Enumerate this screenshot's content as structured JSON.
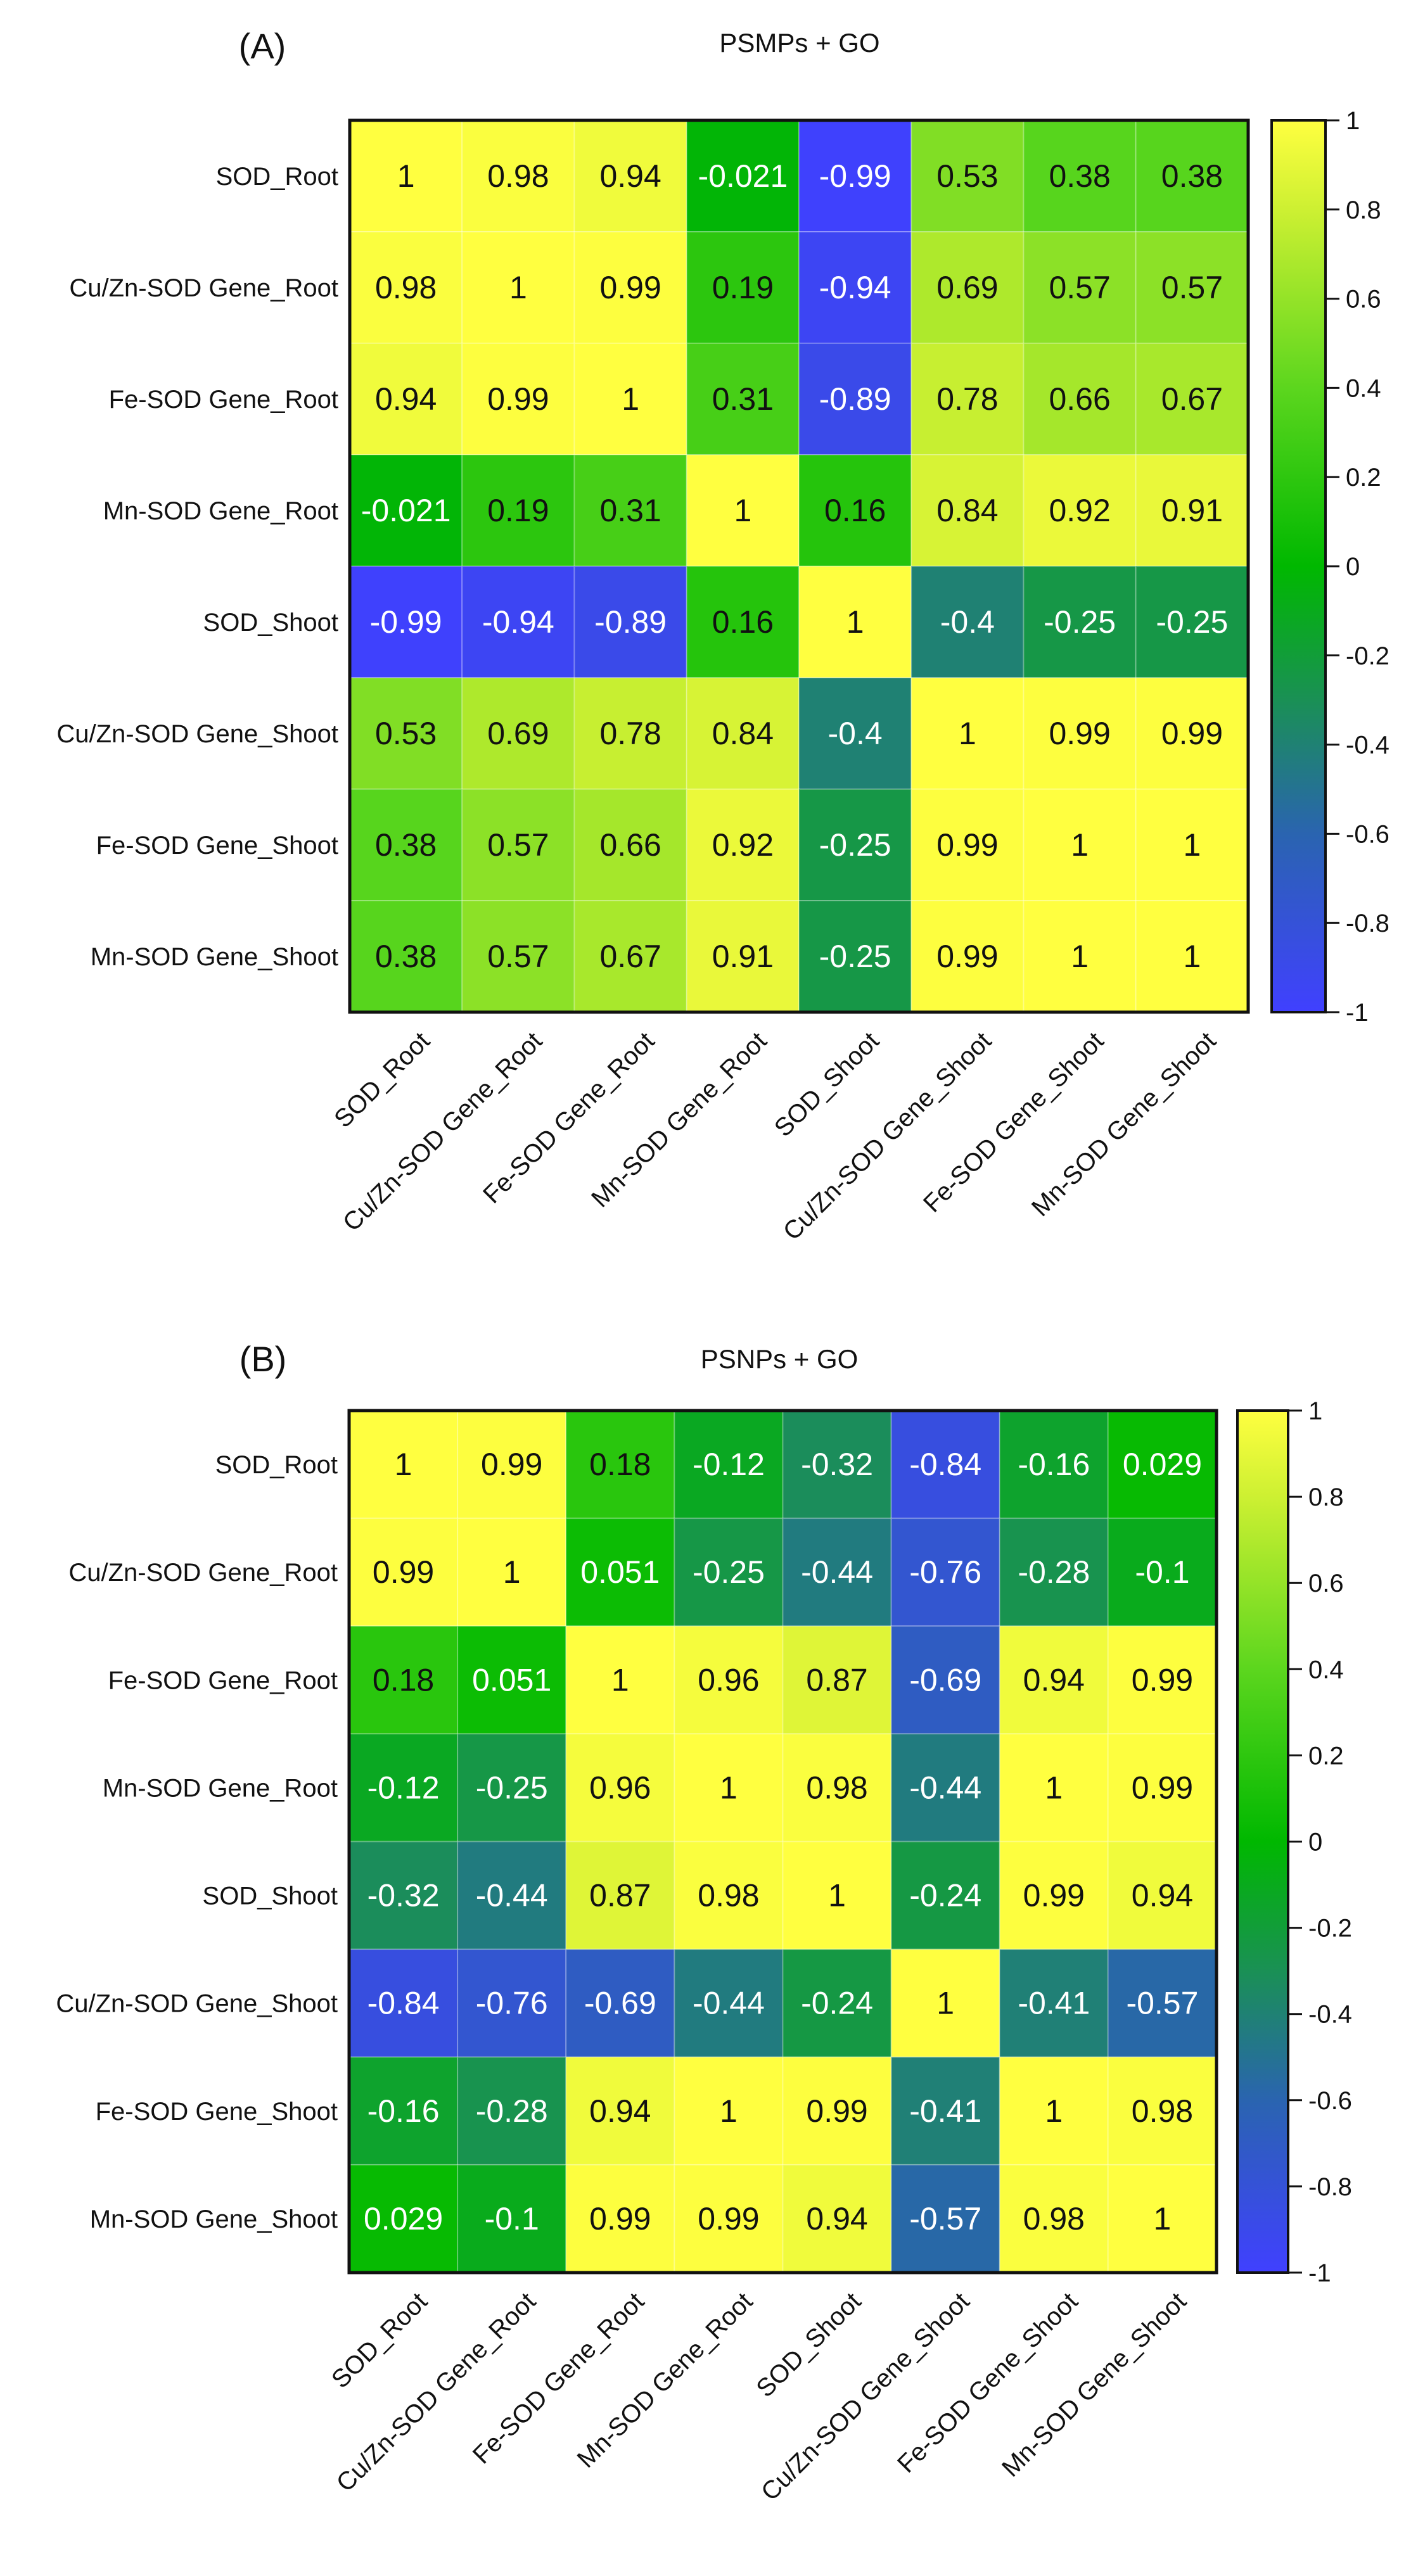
{
  "chart_data": [
    {
      "type": "heatmap",
      "panel_label": "(A)",
      "title": "PSMPs + GO",
      "rows": [
        "SOD_Root",
        "Cu/Zn-SOD Gene_Root",
        "Fe-SOD Gene_Root",
        "Mn-SOD Gene_Root",
        "SOD_Shoot",
        "Cu/Zn-SOD Gene_Shoot",
        "Fe-SOD Gene_Shoot",
        "Mn-SOD Gene_Shoot"
      ],
      "columns": [
        "SOD_Root",
        "Cu/Zn-SOD Gene_Root",
        "Fe-SOD Gene_Root",
        "Mn-SOD Gene_Root",
        "SOD_Shoot",
        "Cu/Zn-SOD Gene_Shoot",
        "Fe-SOD Gene_Shoot",
        "Mn-SOD Gene_Shoot"
      ],
      "values": [
        [
          "1",
          "0.98",
          "0.94",
          "-0.021",
          "-0.99",
          "0.53",
          "0.38",
          "0.38"
        ],
        [
          "0.98",
          "1",
          "0.99",
          "0.19",
          "-0.94",
          "0.69",
          "0.57",
          "0.57"
        ],
        [
          "0.94",
          "0.99",
          "1",
          "0.31",
          "-0.89",
          "0.78",
          "0.66",
          "0.67"
        ],
        [
          "-0.021",
          "0.19",
          "0.31",
          "1",
          "0.16",
          "0.84",
          "0.92",
          "0.91"
        ],
        [
          "-0.99",
          "-0.94",
          "-0.89",
          "0.16",
          "1",
          "-0.4",
          "-0.25",
          "-0.25"
        ],
        [
          "0.53",
          "0.69",
          "0.78",
          "0.84",
          "-0.4",
          "1",
          "0.99",
          "0.99"
        ],
        [
          "0.38",
          "0.57",
          "0.66",
          "0.92",
          "-0.25",
          "0.99",
          "1",
          "1"
        ],
        [
          "0.38",
          "0.57",
          "0.67",
          "0.91",
          "-0.25",
          "0.99",
          "1",
          "1"
        ]
      ],
      "colorbar": {
        "min": -1,
        "max": 1,
        "ticks": [
          "1",
          "0.8",
          "0.6",
          "0.4",
          "0.2",
          "0",
          "-0.2",
          "-0.4",
          "-0.6",
          "-0.8",
          "-1"
        ]
      }
    },
    {
      "type": "heatmap",
      "panel_label": "(B)",
      "title": "PSNPs + GO",
      "rows": [
        "SOD_Root",
        "Cu/Zn-SOD Gene_Root",
        "Fe-SOD Gene_Root",
        "Mn-SOD Gene_Root",
        "SOD_Shoot",
        "Cu/Zn-SOD Gene_Shoot",
        "Fe-SOD Gene_Shoot",
        "Mn-SOD Gene_Shoot"
      ],
      "columns": [
        "SOD_Root",
        "Cu/Zn-SOD Gene_Root",
        "Fe-SOD Gene_Root",
        "Mn-SOD Gene_Root",
        "SOD_Shoot",
        "Cu/Zn-SOD Gene_Shoot",
        "Fe-SOD Gene_Shoot",
        "Mn-SOD Gene_Shoot"
      ],
      "values": [
        [
          "1",
          "0.99",
          "0.18",
          "-0.12",
          "-0.32",
          "-0.84",
          "-0.16",
          "0.029"
        ],
        [
          "0.99",
          "1",
          "0.051",
          "-0.25",
          "-0.44",
          "-0.76",
          "-0.28",
          "-0.1"
        ],
        [
          "0.18",
          "0.051",
          "1",
          "0.96",
          "0.87",
          "-0.69",
          "0.94",
          "0.99"
        ],
        [
          "-0.12",
          "-0.25",
          "0.96",
          "1",
          "0.98",
          "-0.44",
          "1",
          "0.99"
        ],
        [
          "-0.32",
          "-0.44",
          "0.87",
          "0.98",
          "1",
          "-0.24",
          "0.99",
          "0.94"
        ],
        [
          "-0.84",
          "-0.76",
          "-0.69",
          "-0.44",
          "-0.24",
          "1",
          "-0.41",
          "-0.57"
        ],
        [
          "-0.16",
          "-0.28",
          "0.94",
          "1",
          "0.99",
          "-0.41",
          "1",
          "0.98"
        ],
        [
          "0.029",
          "-0.1",
          "0.99",
          "0.99",
          "0.94",
          "-0.57",
          "0.98",
          "1"
        ]
      ],
      "colorbar": {
        "min": -1,
        "max": 1,
        "ticks": [
          "1",
          "0.8",
          "0.6",
          "0.4",
          "0.2",
          "0",
          "-0.2",
          "-0.4",
          "-0.6",
          "-0.8",
          "-1"
        ]
      }
    }
  ],
  "colorscale": [
    {
      "value": -1,
      "color": "#4040ff"
    },
    {
      "value": -0.6,
      "color": "#2a64b0"
    },
    {
      "value": -0.3,
      "color": "#1a9055"
    },
    {
      "value": 0,
      "color": "#00b800"
    },
    {
      "value": 0.4,
      "color": "#5cd61e"
    },
    {
      "value": 0.8,
      "color": "#cdf032"
    },
    {
      "value": 1,
      "color": "#ffff40"
    }
  ]
}
